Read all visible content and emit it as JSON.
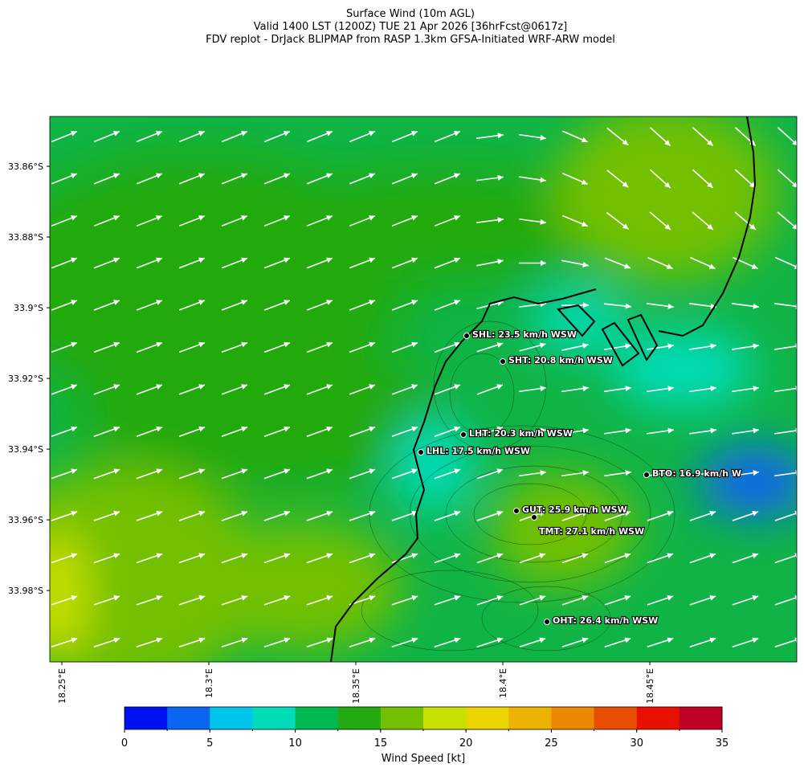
{
  "header": {
    "lines": [
      "Surface Wind (10m AGL)",
      "Valid 1400 LST (1200Z) TUE 21 Apr 2026 [36hrFcst@0617z]",
      "FDV replot - DrJack BLIPMAP from RASP 1.3km GFSA-Initiated WRF-ARW model"
    ]
  },
  "map": {
    "xlim": [
      18.2459,
      18.5
    ],
    "ylim": [
      -34.0002,
      -33.8459
    ],
    "xticks": [
      {
        "value": 18.25,
        "label": "18.25°E"
      },
      {
        "value": 18.3,
        "label": "18.3°E"
      },
      {
        "value": 18.35,
        "label": "18.35°E"
      },
      {
        "value": 18.4,
        "label": "18.4°E"
      },
      {
        "value": 18.45,
        "label": "18.45°E"
      }
    ],
    "yticks": [
      {
        "value": -33.86,
        "label": "33.86°S"
      },
      {
        "value": -33.88,
        "label": "33.88°S"
      },
      {
        "value": -33.9,
        "label": "33.9°S"
      },
      {
        "value": -33.92,
        "label": "33.92°S"
      },
      {
        "value": -33.94,
        "label": "33.94°S"
      },
      {
        "value": -33.96,
        "label": "33.96°S"
      },
      {
        "value": -33.98,
        "label": "33.98°S"
      }
    ],
    "stations": [
      {
        "label": "SHL: 23.5 km/h WSW"
      },
      {
        "label": "SHT: 20.8 km/h WSW"
      },
      {
        "label": "LHT: 20.3 km/h WSW"
      },
      {
        "label": "LHL: 17.5 km/h WSW"
      },
      {
        "label": "BTO: 16.9 km/h W"
      },
      {
        "label": "GUT: 25.9 km/h WSW"
      },
      {
        "label": "TMT: 27.1 km/h WSW"
      },
      {
        "label": "OHT: 26.4 km/h WSW"
      }
    ]
  },
  "colorbar": {
    "label": "Wind Speed [kt]",
    "lim": [
      0,
      35
    ],
    "ticks": [
      0,
      5,
      10,
      15,
      20,
      25,
      30,
      35
    ],
    "colors": [
      "#0010ee",
      "#0a66ee",
      "#00c4ec",
      "#00dcb8",
      "#00b850",
      "#22aa10",
      "#72c000",
      "#c8e000",
      "#ecd400",
      "#ecb400",
      "#ec8800",
      "#e84e00",
      "#e81000",
      "#c00024"
    ]
  }
}
